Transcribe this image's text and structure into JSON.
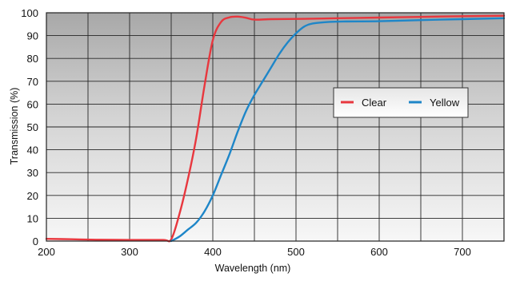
{
  "chart_data": {
    "type": "line",
    "title": "",
    "xlabel": "Wavelength (nm)",
    "ylabel": "Transmission (%)",
    "xlim": [
      200,
      750
    ],
    "ylim": [
      0,
      100
    ],
    "x_ticks": [
      200,
      300,
      400,
      500,
      600,
      700
    ],
    "y_ticks": [
      0,
      10,
      20,
      30,
      40,
      50,
      60,
      70,
      80,
      90,
      100
    ],
    "grid": true,
    "legend_position": "right-middle",
    "series": [
      {
        "name": "Clear",
        "color": "#e8373e",
        "points": [
          [
            200,
            1
          ],
          [
            230,
            0.8
          ],
          [
            260,
            0.6
          ],
          [
            300,
            0.5
          ],
          [
            340,
            0.5
          ],
          [
            350,
            0.8
          ],
          [
            360,
            12
          ],
          [
            370,
            27
          ],
          [
            380,
            45
          ],
          [
            390,
            68
          ],
          [
            400,
            88
          ],
          [
            410,
            96
          ],
          [
            420,
            98
          ],
          [
            430,
            98.3
          ],
          [
            440,
            97.8
          ],
          [
            450,
            97
          ],
          [
            470,
            97.2
          ],
          [
            500,
            97.3
          ],
          [
            550,
            97.6
          ],
          [
            600,
            97.9
          ],
          [
            650,
            98.2
          ],
          [
            700,
            98.5
          ],
          [
            750,
            98.7
          ]
        ]
      },
      {
        "name": "Yellow",
        "color": "#1e86c8",
        "points": [
          [
            350,
            0
          ],
          [
            360,
            2
          ],
          [
            370,
            5
          ],
          [
            380,
            8
          ],
          [
            390,
            13
          ],
          [
            400,
            20
          ],
          [
            410,
            29
          ],
          [
            420,
            38
          ],
          [
            430,
            48
          ],
          [
            440,
            57
          ],
          [
            450,
            64
          ],
          [
            460,
            70
          ],
          [
            470,
            76
          ],
          [
            480,
            82
          ],
          [
            490,
            87
          ],
          [
            500,
            91
          ],
          [
            510,
            94
          ],
          [
            520,
            95.3
          ],
          [
            540,
            96
          ],
          [
            560,
            96.2
          ],
          [
            600,
            96.3
          ],
          [
            650,
            96.8
          ],
          [
            700,
            97.2
          ],
          [
            750,
            97.6
          ]
        ]
      }
    ]
  }
}
